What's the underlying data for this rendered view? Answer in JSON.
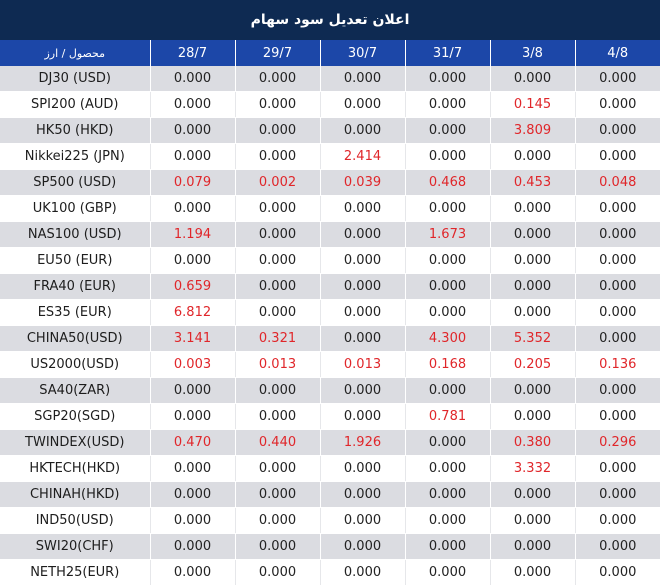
{
  "title": "اعلان تعدیل سود سهام",
  "header": {
    "symbol_label": "محصول / ارز",
    "dates": [
      "28/7",
      "29/7",
      "30/7",
      "31/7",
      "3/8",
      "4/8"
    ]
  },
  "colors": {
    "title_bg": "#0e2a52",
    "header_bg": "#1c47a8",
    "stripe_bg": "#dbdce1",
    "nonzero_value": "#e0262a",
    "zero_value": "#222222"
  },
  "rows": [
    {
      "symbol": "DJ30 (USD)",
      "values": [
        "0.000",
        "0.000",
        "0.000",
        "0.000",
        "0.000",
        "0.000"
      ]
    },
    {
      "symbol": "SPI200 (AUD)",
      "values": [
        "0.000",
        "0.000",
        "0.000",
        "0.000",
        "0.145",
        "0.000"
      ]
    },
    {
      "symbol": "HK50 (HKD)",
      "values": [
        "0.000",
        "0.000",
        "0.000",
        "0.000",
        "3.809",
        "0.000"
      ]
    },
    {
      "symbol": "Nikkei225 (JPN)",
      "values": [
        "0.000",
        "0.000",
        "2.414",
        "0.000",
        "0.000",
        "0.000"
      ]
    },
    {
      "symbol": "SP500 (USD)",
      "values": [
        "0.079",
        "0.002",
        "0.039",
        "0.468",
        "0.453",
        "0.048"
      ]
    },
    {
      "symbol": "UK100 (GBP)",
      "values": [
        "0.000",
        "0.000",
        "0.000",
        "0.000",
        "0.000",
        "0.000"
      ]
    },
    {
      "symbol": "NAS100 (USD)",
      "values": [
        "1.194",
        "0.000",
        "0.000",
        "1.673",
        "0.000",
        "0.000"
      ]
    },
    {
      "symbol": "EU50 (EUR)",
      "values": [
        "0.000",
        "0.000",
        "0.000",
        "0.000",
        "0.000",
        "0.000"
      ]
    },
    {
      "symbol": "FRA40 (EUR)",
      "values": [
        "0.659",
        "0.000",
        "0.000",
        "0.000",
        "0.000",
        "0.000"
      ]
    },
    {
      "symbol": "ES35 (EUR)",
      "values": [
        "6.812",
        "0.000",
        "0.000",
        "0.000",
        "0.000",
        "0.000"
      ]
    },
    {
      "symbol": "CHINA50(USD)",
      "values": [
        "3.141",
        "0.321",
        "0.000",
        "4.300",
        "5.352",
        "0.000"
      ]
    },
    {
      "symbol": "US2000(USD)",
      "values": [
        "0.003",
        "0.013",
        "0.013",
        "0.168",
        "0.205",
        "0.136"
      ]
    },
    {
      "symbol": "SA40(ZAR)",
      "values": [
        "0.000",
        "0.000",
        "0.000",
        "0.000",
        "0.000",
        "0.000"
      ]
    },
    {
      "symbol": "SGP20(SGD)",
      "values": [
        "0.000",
        "0.000",
        "0.000",
        "0.781",
        "0.000",
        "0.000"
      ]
    },
    {
      "symbol": "TWINDEX(USD)",
      "values": [
        "0.470",
        "0.440",
        "1.926",
        "0.000",
        "0.380",
        "0.296"
      ]
    },
    {
      "symbol": "HKTECH(HKD)",
      "values": [
        "0.000",
        "0.000",
        "0.000",
        "0.000",
        "3.332",
        "0.000"
      ]
    },
    {
      "symbol": "CHINAH(HKD)",
      "values": [
        "0.000",
        "0.000",
        "0.000",
        "0.000",
        "0.000",
        "0.000"
      ]
    },
    {
      "symbol": "IND50(USD)",
      "values": [
        "0.000",
        "0.000",
        "0.000",
        "0.000",
        "0.000",
        "0.000"
      ]
    },
    {
      "symbol": "SWI20(CHF)",
      "values": [
        "0.000",
        "0.000",
        "0.000",
        "0.000",
        "0.000",
        "0.000"
      ]
    },
    {
      "symbol": "NETH25(EUR)",
      "values": [
        "0.000",
        "0.000",
        "0.000",
        "0.000",
        "0.000",
        "0.000"
      ]
    }
  ]
}
